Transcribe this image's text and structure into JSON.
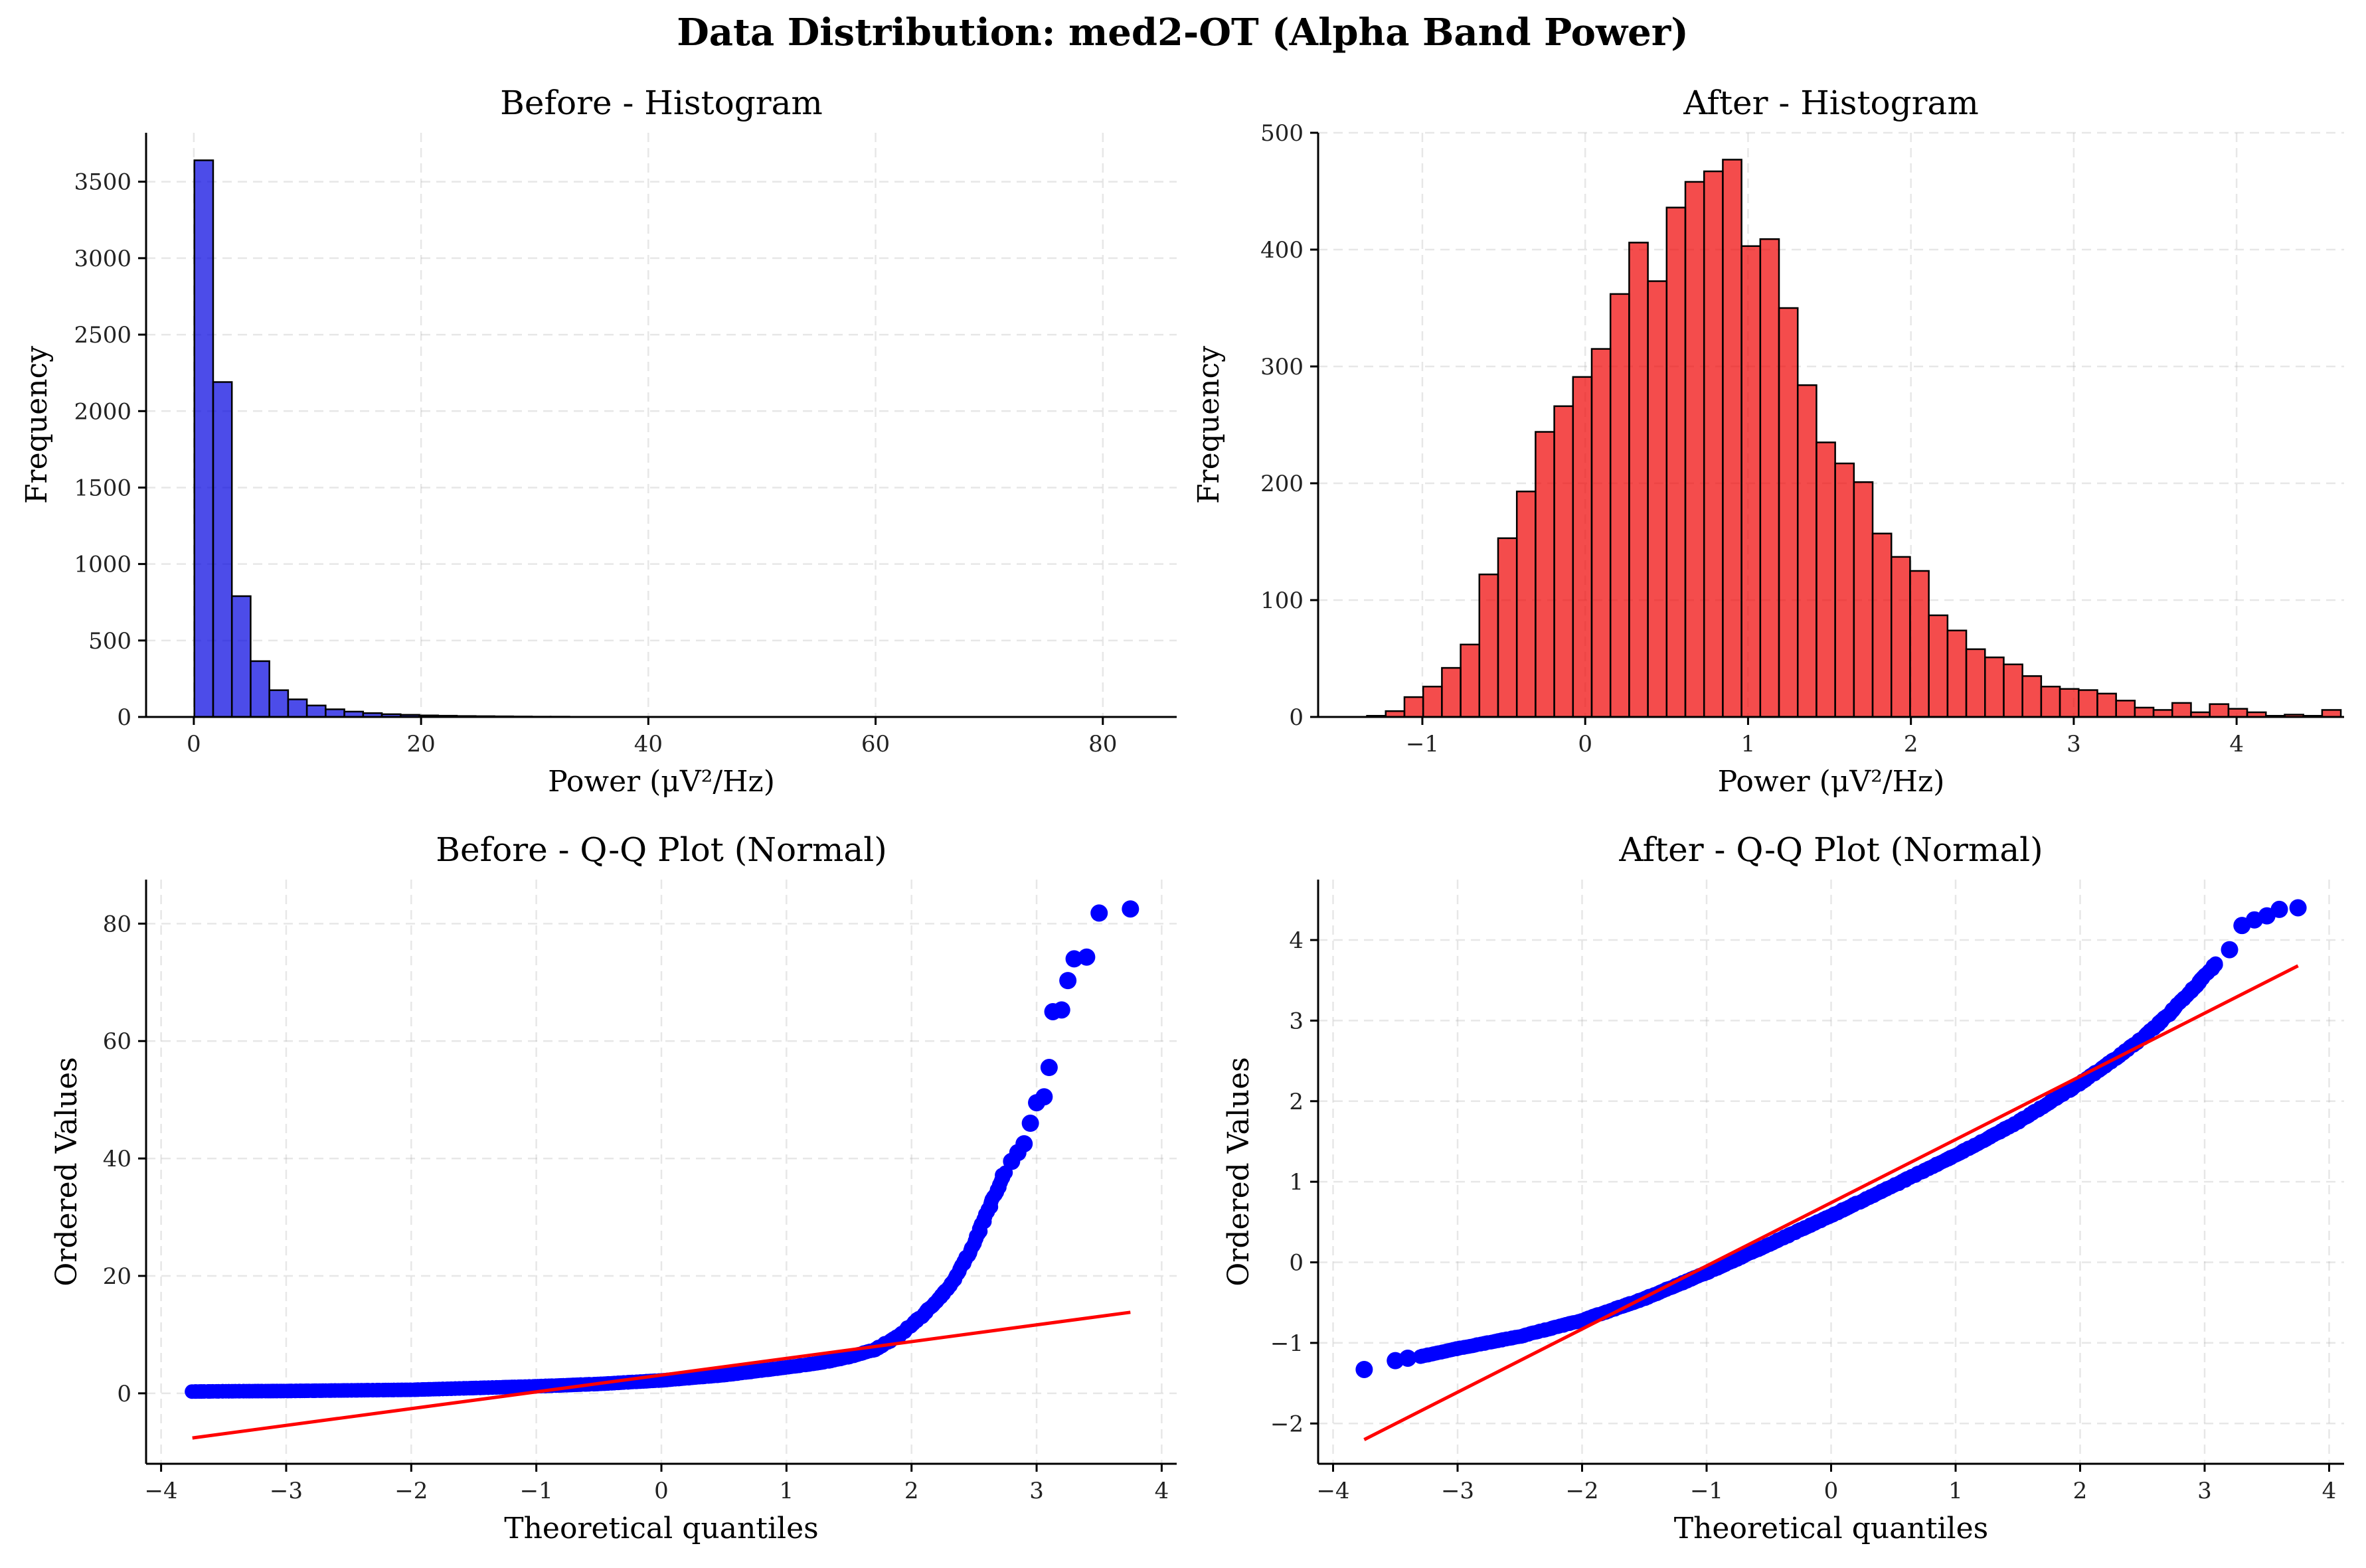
{
  "suptitle": "Data Distribution: med2-OT (Alpha Band Power)",
  "chart_data": [
    {
      "type": "bar",
      "title": "Before - Histogram",
      "xlabel": "Power (μV²/Hz)",
      "ylabel": "Frequency",
      "xlim": [
        -4.2,
        86.5
      ],
      "ylim": [
        0,
        3820
      ],
      "xticks": [
        0,
        20,
        40,
        60,
        80
      ],
      "yticks": [
        0,
        500,
        1000,
        1500,
        2000,
        2500,
        3000,
        3500
      ],
      "grid": true,
      "color": "#0000e0",
      "bin_start": 0.05,
      "bin_width": 1.65,
      "values": [
        3640,
        2190,
        790,
        365,
        175,
        115,
        75,
        50,
        35,
        25,
        18,
        14,
        10,
        8,
        6,
        5,
        4,
        3,
        2,
        2,
        1,
        1,
        1,
        1,
        0,
        1,
        0,
        0,
        0,
        1,
        0,
        0,
        0,
        0,
        0,
        0,
        0,
        0,
        1,
        0,
        1,
        0,
        0,
        0,
        1,
        0,
        1,
        0,
        0,
        1
      ]
    },
    {
      "type": "bar",
      "title": "After - Histogram",
      "xlabel": "Power (μV²/Hz)",
      "ylabel": "Frequency",
      "xlim": [
        -1.64,
        4.66
      ],
      "ylim": [
        0,
        500
      ],
      "xticks": [
        -1,
        0,
        1,
        2,
        3,
        4
      ],
      "xtick_labels": [
        "−1",
        "0",
        "1",
        "2",
        "3",
        "4"
      ],
      "yticks": [
        0,
        100,
        200,
        300,
        400,
        500
      ],
      "grid": true,
      "color": "#f00000",
      "bin_start": -1.34,
      "bin_width": 0.115,
      "values": [
        1,
        5,
        17,
        26,
        42,
        62,
        122,
        153,
        193,
        244,
        266,
        291,
        315,
        362,
        406,
        373,
        436,
        458,
        467,
        477,
        403,
        409,
        350,
        284,
        235,
        217,
        201,
        157,
        137,
        125,
        87,
        74,
        58,
        51,
        45,
        35,
        26,
        24,
        23,
        20,
        14,
        8,
        6,
        12,
        4,
        11,
        7,
        4,
        1,
        2,
        1,
        6
      ]
    },
    {
      "type": "scatter",
      "title": "Before - Q-Q Plot (Normal)",
      "xlabel": "Theoretical quantiles",
      "ylabel": "Ordered Values",
      "xlim": [
        -4.12,
        4.12
      ],
      "ylim": [
        -12,
        87.5
      ],
      "xticks": [
        -4,
        -3,
        -2,
        -1,
        0,
        1,
        2,
        3,
        4
      ],
      "xtick_labels": [
        "−4",
        "−3",
        "−2",
        "−1",
        "0",
        "1",
        "2",
        "3",
        "4"
      ],
      "yticks": [
        0,
        20,
        40,
        60,
        80
      ],
      "grid": true,
      "point_color": "#0000ff",
      "line_color": "#ff0000",
      "fit_line": [
        [
          -3.75,
          -7.6
        ],
        [
          3.75,
          13.8
        ]
      ],
      "quantile_curve": [
        [
          -3.75,
          0.3
        ],
        [
          -3.5,
          0.35
        ],
        [
          -3.0,
          0.4
        ],
        [
          -2.0,
          0.6
        ],
        [
          -1.0,
          1.2
        ],
        [
          -0.5,
          1.6
        ],
        [
          0.0,
          2.2
        ],
        [
          0.5,
          3.1
        ],
        [
          1.0,
          4.4
        ],
        [
          1.3,
          5.3
        ],
        [
          1.5,
          6.2
        ],
        [
          1.7,
          7.4
        ],
        [
          1.9,
          9.8
        ],
        [
          2.1,
          13.5
        ],
        [
          2.3,
          18.0
        ],
        [
          2.45,
          23.5
        ],
        [
          2.55,
          28.0
        ],
        [
          2.65,
          33.0
        ],
        [
          2.75,
          38.0
        ]
      ],
      "outlier_points": [
        [
          2.8,
          39.5
        ],
        [
          2.85,
          41.0
        ],
        [
          2.9,
          42.5
        ],
        [
          2.95,
          46.0
        ],
        [
          3.0,
          49.5
        ],
        [
          3.06,
          50.5
        ],
        [
          3.1,
          55.5
        ],
        [
          3.13,
          65.0
        ],
        [
          3.2,
          65.3
        ],
        [
          3.25,
          70.3
        ],
        [
          3.3,
          74.0
        ],
        [
          3.4,
          74.3
        ],
        [
          3.5,
          81.8
        ],
        [
          3.75,
          82.5
        ]
      ]
    },
    {
      "type": "scatter",
      "title": "After - Q-Q Plot (Normal)",
      "xlabel": "Theoretical quantiles",
      "ylabel": "Ordered Values",
      "xlim": [
        -4.12,
        4.12
      ],
      "ylim": [
        -2.5,
        4.75
      ],
      "xticks": [
        -4,
        -3,
        -2,
        -1,
        0,
        1,
        2,
        3,
        4
      ],
      "xtick_labels": [
        "−4",
        "−3",
        "−2",
        "−1",
        "0",
        "1",
        "2",
        "3",
        "4"
      ],
      "yticks": [
        -2,
        -1,
        0,
        1,
        2,
        3,
        4
      ],
      "ytick_labels": [
        "−2",
        "−1",
        "0",
        "1",
        "2",
        "3",
        "4"
      ],
      "grid": true,
      "point_color": "#0000ff",
      "line_color": "#ff0000",
      "fit_line": [
        [
          -3.75,
          -2.2
        ],
        [
          3.75,
          3.68
        ]
      ],
      "quantile_curve": [
        [
          -3.3,
          -1.17
        ],
        [
          -3.0,
          -1.07
        ],
        [
          -2.5,
          -0.92
        ],
        [
          -2.0,
          -0.72
        ],
        [
          -1.5,
          -0.45
        ],
        [
          -1.0,
          -0.13
        ],
        [
          -0.5,
          0.22
        ],
        [
          0.0,
          0.58
        ],
        [
          0.5,
          0.95
        ],
        [
          1.0,
          1.33
        ],
        [
          1.5,
          1.74
        ],
        [
          2.0,
          2.22
        ],
        [
          2.3,
          2.55
        ],
        [
          2.5,
          2.78
        ],
        [
          2.7,
          3.06
        ],
        [
          2.9,
          3.38
        ],
        [
          3.1,
          3.72
        ]
      ],
      "outlier_points": [
        [
          -3.75,
          -1.33
        ],
        [
          -3.5,
          -1.22
        ],
        [
          -3.4,
          -1.19
        ],
        [
          3.2,
          3.88
        ],
        [
          3.3,
          4.18
        ],
        [
          3.4,
          4.25
        ],
        [
          3.5,
          4.3
        ],
        [
          3.6,
          4.38
        ],
        [
          3.75,
          4.4
        ]
      ]
    }
  ]
}
